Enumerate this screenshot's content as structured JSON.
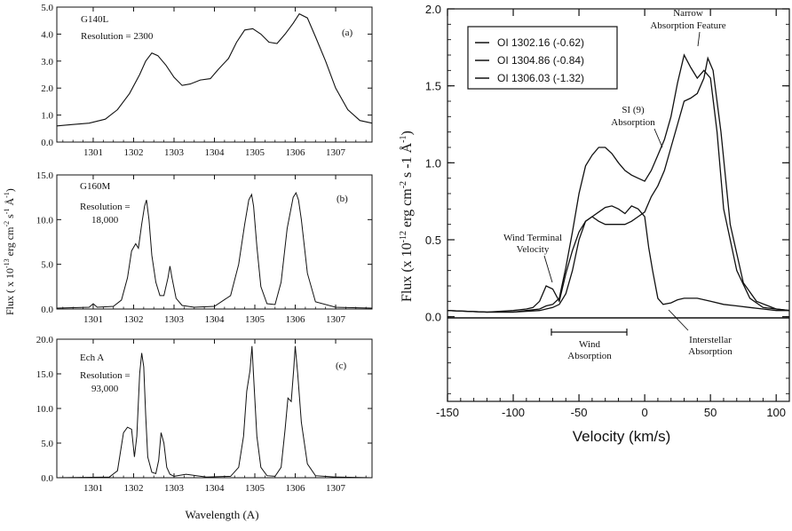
{
  "chart_data": [
    {
      "type": "line",
      "panel_label": "(a)",
      "annotation": [
        "G140L",
        "Resolution = 2300"
      ],
      "xlim": [
        1300.1,
        1307.9
      ],
      "ylim": [
        0,
        5.0
      ],
      "x_ticks": [
        1301,
        1302,
        1303,
        1304,
        1305,
        1306,
        1307
      ],
      "y_ticks": [
        "0.0",
        "1.0",
        "2.0",
        "3.0",
        "4.0",
        "5.0"
      ],
      "series": [
        {
          "x": [
            1300.1,
            1300.5,
            1300.9,
            1301.3,
            1301.6,
            1301.9,
            1302.15,
            1302.3,
            1302.45,
            1302.6,
            1302.8,
            1303.0,
            1303.2,
            1303.4,
            1303.65,
            1303.9,
            1304.1,
            1304.35,
            1304.55,
            1304.75,
            1304.95,
            1305.15,
            1305.35,
            1305.55,
            1305.75,
            1305.95,
            1306.1,
            1306.3,
            1306.5,
            1306.75,
            1307.0,
            1307.3,
            1307.6,
            1307.9
          ],
          "y": [
            0.6,
            0.65,
            0.7,
            0.85,
            1.2,
            1.8,
            2.5,
            3.0,
            3.3,
            3.2,
            2.85,
            2.4,
            2.1,
            2.15,
            2.3,
            2.35,
            2.7,
            3.1,
            3.7,
            4.15,
            4.2,
            4.0,
            3.7,
            3.65,
            4.0,
            4.4,
            4.75,
            4.6,
            3.9,
            3.0,
            2.0,
            1.2,
            0.8,
            0.7
          ]
        }
      ]
    },
    {
      "type": "line",
      "panel_label": "(b)",
      "annotation": [
        "G160M",
        "Resolution =",
        "18,000"
      ],
      "xlim": [
        1300.1,
        1307.9
      ],
      "ylim": [
        0,
        15.0
      ],
      "x_ticks": [
        1301,
        1302,
        1303,
        1304,
        1305,
        1306,
        1307
      ],
      "y_ticks": [
        "0.0",
        "5.0",
        "10.0",
        "15.0"
      ],
      "series": [
        {
          "x": [
            1300.1,
            1300.9,
            1301.0,
            1301.1,
            1301.5,
            1301.7,
            1301.85,
            1301.95,
            1302.05,
            1302.12,
            1302.2,
            1302.27,
            1302.32,
            1302.38,
            1302.45,
            1302.55,
            1302.65,
            1302.75,
            1302.85,
            1302.9,
            1302.95,
            1303.05,
            1303.2,
            1303.5,
            1304.0,
            1304.4,
            1304.6,
            1304.75,
            1304.85,
            1304.92,
            1304.97,
            1305.05,
            1305.15,
            1305.3,
            1305.5,
            1305.65,
            1305.8,
            1305.95,
            1306.02,
            1306.08,
            1306.15,
            1306.3,
            1306.5,
            1307.0,
            1307.9
          ],
          "y": [
            0.1,
            0.2,
            0.6,
            0.2,
            0.3,
            1.0,
            3.5,
            6.5,
            7.3,
            6.8,
            9.5,
            11.5,
            12.2,
            10.0,
            6.0,
            3.0,
            1.5,
            1.5,
            3.5,
            4.8,
            3.5,
            1.2,
            0.4,
            0.2,
            0.3,
            1.5,
            5.0,
            9.5,
            12.2,
            12.8,
            11.5,
            7.0,
            2.5,
            0.6,
            0.5,
            3.0,
            9.0,
            12.5,
            13.0,
            12.2,
            10.0,
            4.0,
            0.8,
            0.2,
            0.1
          ]
        }
      ]
    },
    {
      "type": "line",
      "panel_label": "(c)",
      "annotation": [
        "Ech A",
        "Resolution =",
        "93,000"
      ],
      "xlim": [
        1300.1,
        1307.9
      ],
      "ylim": [
        0,
        20.0
      ],
      "x_ticks": [
        1301,
        1302,
        1303,
        1304,
        1305,
        1306,
        1307
      ],
      "y_ticks": [
        "0.0",
        "5.0",
        "10.0",
        "15.0",
        "20.0"
      ],
      "x_tick_labels": [
        "1301",
        "1302",
        "1303",
        "1304",
        "1305",
        "1306",
        "1307"
      ],
      "series": [
        {
          "x": [
            1300.1,
            1301.4,
            1301.6,
            1301.75,
            1301.85,
            1301.95,
            1302.02,
            1302.08,
            1302.15,
            1302.2,
            1302.25,
            1302.3,
            1302.35,
            1302.45,
            1302.55,
            1302.62,
            1302.68,
            1302.75,
            1302.82,
            1302.9,
            1303.0,
            1303.3,
            1303.8,
            1304.4,
            1304.6,
            1304.72,
            1304.8,
            1304.88,
            1304.93,
            1304.98,
            1305.05,
            1305.15,
            1305.3,
            1305.5,
            1305.65,
            1305.75,
            1305.82,
            1305.9,
            1305.96,
            1306.0,
            1306.06,
            1306.15,
            1306.3,
            1306.5,
            1307.0,
            1307.9
          ],
          "y": [
            0.0,
            0.1,
            1.0,
            6.5,
            7.3,
            7.0,
            3.0,
            6.0,
            15.0,
            18.0,
            16.0,
            9.0,
            3.0,
            0.8,
            0.6,
            2.5,
            6.5,
            5.0,
            1.5,
            0.5,
            0.2,
            0.5,
            0.1,
            0.2,
            1.5,
            6.0,
            12.5,
            15.5,
            19.0,
            13.5,
            6.0,
            1.5,
            0.3,
            0.2,
            1.5,
            7.0,
            11.5,
            11.0,
            15.5,
            19.0,
            15.0,
            8.0,
            2.0,
            0.3,
            0.1,
            0.0
          ]
        }
      ]
    },
    {
      "type": "line",
      "xlim": [
        -150,
        110
      ],
      "ylim": [
        -0.55,
        2.0
      ],
      "x_ticks": [
        -150,
        -100,
        -50,
        0,
        50,
        100
      ],
      "y_ticks": [
        "0.0",
        "0.5",
        "1.0",
        "1.5",
        "2.0"
      ],
      "xlabel": "Velocity (km/s)",
      "ylabel": "Flux (x 10",
      "ylabel_exp": "-12",
      "ylabel_units": " erg cm",
      "ylabel_units_exp": "-2",
      "ylabel_units_tail": " s -1 Å",
      "ylabel_units_tail_exp": "-1",
      "ylabel_close": ")",
      "legend_position": "top-left",
      "series": [
        {
          "name": "OI 1302.16 (-0.62)",
          "x": [
            -150,
            -120,
            -100,
            -90,
            -85,
            -80,
            -75,
            -70,
            -65,
            -60,
            -55,
            -50,
            -45,
            -40,
            -35,
            -30,
            -25,
            -20,
            -15,
            -10,
            -5,
            0,
            3,
            6,
            10,
            14,
            20,
            25,
            30,
            40,
            50,
            60,
            70,
            80,
            90,
            100,
            110
          ],
          "y": [
            0.04,
            0.03,
            0.04,
            0.05,
            0.06,
            0.1,
            0.2,
            0.18,
            0.1,
            0.28,
            0.43,
            0.55,
            0.62,
            0.65,
            0.68,
            0.71,
            0.72,
            0.7,
            0.67,
            0.72,
            0.7,
            0.65,
            0.45,
            0.3,
            0.12,
            0.08,
            0.09,
            0.11,
            0.12,
            0.12,
            0.1,
            0.08,
            0.07,
            0.06,
            0.05,
            0.04,
            0.04
          ]
        },
        {
          "name": "OI 1304.86 (-0.84)",
          "x": [
            -150,
            -120,
            -100,
            -90,
            -80,
            -75,
            -70,
            -65,
            -60,
            -55,
            -50,
            -45,
            -40,
            -35,
            -30,
            -25,
            -20,
            -15,
            -10,
            -5,
            0,
            5,
            10,
            15,
            20,
            25,
            30,
            35,
            40,
            45,
            50,
            55,
            60,
            70,
            80,
            90,
            110
          ],
          "y": [
            0.04,
            0.03,
            0.03,
            0.04,
            0.05,
            0.07,
            0.08,
            0.12,
            0.32,
            0.55,
            0.8,
            0.98,
            1.05,
            1.1,
            1.1,
            1.06,
            1.0,
            0.95,
            0.92,
            0.9,
            0.88,
            0.95,
            1.05,
            1.15,
            1.3,
            1.52,
            1.7,
            1.62,
            1.55,
            1.6,
            1.55,
            1.2,
            0.7,
            0.3,
            0.12,
            0.06,
            0.04
          ]
        },
        {
          "name": "OI 1306.03 (-1.32)",
          "x": [
            -150,
            -120,
            -100,
            -80,
            -75,
            -70,
            -65,
            -60,
            -55,
            -50,
            -45,
            -40,
            -35,
            -30,
            -25,
            -20,
            -15,
            -10,
            -5,
            0,
            5,
            10,
            15,
            20,
            25,
            30,
            35,
            40,
            45,
            48,
            52,
            58,
            65,
            75,
            85,
            100,
            110
          ],
          "y": [
            0.04,
            0.03,
            0.03,
            0.04,
            0.05,
            0.06,
            0.08,
            0.15,
            0.3,
            0.5,
            0.62,
            0.65,
            0.62,
            0.6,
            0.6,
            0.6,
            0.6,
            0.62,
            0.65,
            0.68,
            0.78,
            0.85,
            0.95,
            1.1,
            1.25,
            1.4,
            1.42,
            1.45,
            1.55,
            1.68,
            1.6,
            1.2,
            0.6,
            0.22,
            0.1,
            0.05,
            0.04
          ]
        }
      ],
      "annotations": {
        "narrow": [
          "Narrow",
          "Absorption Feature"
        ],
        "si": [
          "SI (9)",
          "Absorption"
        ],
        "wind_terminal": [
          "Wind Terminal",
          "Velocity"
        ],
        "wind": [
          "Wind",
          "Absorption"
        ],
        "interstellar": [
          "Interstellar",
          "Absorption"
        ]
      }
    }
  ],
  "left_ylabel": "Flux ( x 10",
  "left_ylabel_exp": "-13",
  "left_ylabel_mid": " erg cm",
  "left_ylabel_mid_exp": "-2",
  "left_ylabel_tail": " s",
  "left_ylabel_tail_exp": "-1",
  "left_ylabel_end": " Å",
  "left_ylabel_end_exp": "-1",
  "left_ylabel_close": ")",
  "left_xlabel": "Wavelength (A)"
}
